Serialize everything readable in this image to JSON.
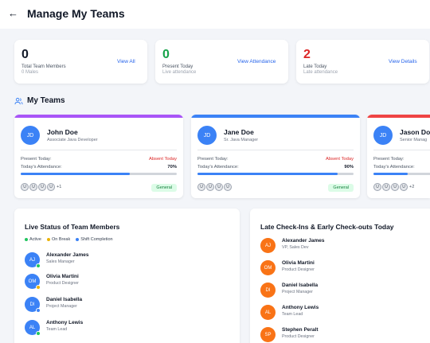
{
  "header": {
    "back_icon": "arrow-left-icon",
    "title": "Manage My Teams"
  },
  "stats": [
    {
      "value": "0",
      "label": "Total Team Members",
      "sub": "0 Males",
      "link": "View All",
      "color": "#111827"
    },
    {
      "value": "0",
      "label": "Present Today",
      "sub": "Live attendance",
      "link": "View Attendance",
      "color": "#16a34a"
    },
    {
      "value": "2",
      "label": "Late Today",
      "sub": "Late attendance",
      "link": "View Details",
      "color": "#dc2626"
    }
  ],
  "teams_section": {
    "title": "My Teams",
    "icon": "users-icon"
  },
  "teams": [
    {
      "initials": "JD",
      "name": "John Doe",
      "role": "Associate Java Developer",
      "present_label": "Present Today:",
      "present_value": "Absent Today",
      "attendance_label": "Today's Attendance:",
      "attendance_value": "70%",
      "attendance_fraction": 0.7,
      "member_avatars": [
        "U",
        "U",
        "U",
        "U"
      ],
      "more": "+1",
      "badge": "General",
      "accent": "#a855f7"
    },
    {
      "initials": "JD",
      "name": "Jane Doe",
      "role": "Sr. Java Manager",
      "present_label": "Present Today:",
      "present_value": "Absent Today",
      "attendance_label": "Today's Attendance:",
      "attendance_value": "90%",
      "attendance_fraction": 0.9,
      "member_avatars": [
        "U",
        "U",
        "U",
        "U"
      ],
      "more": "",
      "badge": "General",
      "accent": "#3b82f6"
    },
    {
      "initials": "JD",
      "name": "Jason Doe",
      "role": "Senior Manag",
      "present_label": "Present Today:",
      "present_value": "",
      "attendance_label": "Today's Attendance:",
      "attendance_value": "",
      "attendance_fraction": 0.6,
      "member_avatars": [
        "U",
        "U",
        "U",
        "U"
      ],
      "more": "+2",
      "badge": "",
      "accent": "#ef4444"
    }
  ],
  "live_status": {
    "title": "Live Status of Team Members",
    "legend": [
      {
        "label": "Active",
        "color": "#22c55e"
      },
      {
        "label": "On Break",
        "color": "#eab308"
      },
      {
        "label": "Shift Completion",
        "color": "#3b82f6"
      }
    ],
    "members": [
      {
        "initials": "AJ",
        "name": "Alexander James",
        "role": "Sales Manager",
        "status_color": "#22c55e"
      },
      {
        "initials": "OM",
        "name": "Olivia Martini",
        "role": "Product Designer",
        "status_color": "#eab308"
      },
      {
        "initials": "DI",
        "name": "Daniel Isabella",
        "role": "Project Manager",
        "status_color": "#3b82f6"
      },
      {
        "initials": "AL",
        "name": "Anthony Lewis",
        "role": "Team Lead",
        "status_color": "#22c55e"
      }
    ]
  },
  "late_checkins": {
    "title": "Late Check-Ins & Early Check-outs Today",
    "members": [
      {
        "initials": "AJ",
        "name": "Alexander James",
        "role": "VP, Sales Dev"
      },
      {
        "initials": "OM",
        "name": "Olivia Martini",
        "role": "Product Designer"
      },
      {
        "initials": "DI",
        "name": "Daniel Isabella",
        "role": "Project Manager"
      },
      {
        "initials": "AL",
        "name": "Anthony Lewis",
        "role": "Team Lead"
      },
      {
        "initials": "SP",
        "name": "Stephen Peralt",
        "role": "Product Designer"
      }
    ]
  }
}
